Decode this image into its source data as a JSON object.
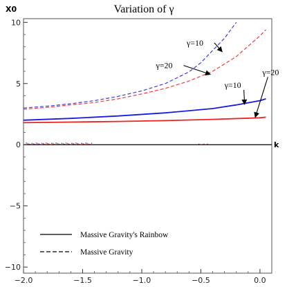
{
  "chart_data": {
    "type": "line",
    "title": "Variation of γ",
    "xlabel": "k",
    "ylabel": "X0",
    "xlim": [
      -2.0,
      0.1
    ],
    "ylim": [
      -10.5,
      10.3
    ],
    "x_ticks": [
      -2.0,
      -1.5,
      -1.0,
      -0.5,
      0.0
    ],
    "x_tick_labels": [
      "−2.0",
      "−1.5",
      "−1.0",
      "−0.5",
      "0.0"
    ],
    "y_ticks": [
      -10,
      -5,
      0,
      5,
      10
    ],
    "y_tick_labels": [
      "−10",
      "−5",
      "0",
      "5",
      "10"
    ],
    "series": [
      {
        "style": "dashed",
        "color": "#3a3aee",
        "x": [
          -2.0,
          -1.8,
          -1.6,
          -1.4,
          -1.2,
          -1.0,
          -0.8,
          -0.6,
          -0.5,
          -0.4,
          -0.3,
          -0.2
        ],
        "y": [
          3.0,
          3.15,
          3.35,
          3.6,
          3.95,
          4.4,
          5.0,
          5.95,
          6.7,
          7.7,
          8.7,
          10.0
        ]
      },
      {
        "style": "dashed",
        "color": "#ee3a3a",
        "x": [
          -2.0,
          -1.8,
          -1.6,
          -1.4,
          -1.2,
          -1.0,
          -0.8,
          -0.6,
          -0.4,
          -0.2,
          0.0,
          0.05
        ],
        "y": [
          2.9,
          3.05,
          3.25,
          3.45,
          3.75,
          4.15,
          4.6,
          5.2,
          6.0,
          7.2,
          8.9,
          9.4
        ]
      },
      {
        "style": "solid",
        "color": "#1a1ae0",
        "x": [
          -2.0,
          -1.6,
          -1.2,
          -0.8,
          -0.4,
          -0.2,
          0.0,
          0.05
        ],
        "y": [
          2.0,
          2.15,
          2.35,
          2.6,
          2.95,
          3.25,
          3.6,
          3.75
        ]
      },
      {
        "style": "solid",
        "color": "#ee2020",
        "x": [
          -2.0,
          -1.6,
          -1.2,
          -0.8,
          -0.4,
          0.0,
          0.05
        ],
        "y": [
          1.8,
          1.85,
          1.9,
          1.97,
          2.07,
          2.2,
          2.25
        ]
      }
    ],
    "annotations": [
      {
        "text": "γ=10",
        "x": -0.62,
        "y": 8.1,
        "arrow_to": [
          -0.32,
          7.6
        ]
      },
      {
        "text": "γ=20",
        "x": -0.88,
        "y": 6.25,
        "arrow_to": [
          -0.42,
          5.75
        ]
      },
      {
        "text": "γ=10",
        "x": -0.3,
        "y": 4.65,
        "arrow_to": [
          -0.13,
          3.3
        ]
      },
      {
        "text": "γ=20",
        "x": 0.02,
        "y": 5.7,
        "arrow_to": [
          -0.04,
          2.25
        ]
      }
    ],
    "legend": {
      "position": "bottom-left",
      "entries": [
        {
          "label": "Massive Gravity's Rainbow",
          "style": "solid"
        },
        {
          "label": "Massive Gravity",
          "style": "dashed"
        }
      ]
    },
    "grid": false
  }
}
